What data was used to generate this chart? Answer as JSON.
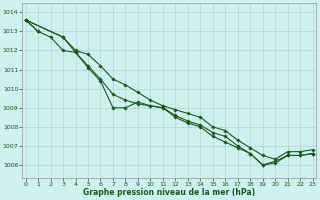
{
  "title": "Graphe pression niveau de la mer (hPa)",
  "background_color": "#cff0f0",
  "grid_color": "#b0d4d4",
  "line_color": "#1a5c1a",
  "marker": "D",
  "marker_size": 1.8,
  "linewidth": 0.8,
  "xlim": [
    -0.3,
    23.3
  ],
  "ylim": [
    1005.3,
    1014.5
  ],
  "yticks": [
    1006,
    1007,
    1008,
    1009,
    1010,
    1011,
    1012,
    1013,
    1014
  ],
  "xticks": [
    0,
    1,
    2,
    3,
    4,
    5,
    6,
    7,
    8,
    9,
    10,
    11,
    12,
    13,
    14,
    15,
    16,
    17,
    18,
    19,
    20,
    21,
    22,
    23
  ],
  "series": [
    [
      1013.6,
      1013.0,
      null,
      null,
      null,
      null,
      null,
      null,
      null,
      null,
      null,
      null,
      null,
      null,
      null,
      null,
      null,
      null,
      null,
      null,
      null,
      null,
      null,
      null
    ],
    [
      1013.6,
      1013.0,
      1012.7,
      1012.0,
      1011.9,
      1011.2,
      1010.5,
      1009.7,
      1009.4,
      1009.2,
      1009.1,
      1009.0,
      1008.5,
      1008.2,
      1008.0,
      1007.5,
      1007.2,
      1006.9,
      1006.6,
      1006.0,
      1006.1,
      1006.5,
      1006.5,
      1006.6
    ],
    [
      1013.6,
      null,
      null,
      1012.7,
      1011.9,
      1011.1,
      1010.4,
      1009.0,
      1009.0,
      1009.3,
      1009.1,
      1009.0,
      1008.6,
      1008.3,
      1008.1,
      1007.7,
      1007.5,
      1007.0,
      1006.6,
      1006.0,
      1006.2,
      1006.5,
      1006.5,
      1006.6
    ],
    [
      1013.6,
      null,
      null,
      1012.7,
      1012.0,
      1011.8,
      1011.2,
      1010.5,
      1010.2,
      1009.8,
      1009.4,
      1009.1,
      1008.9,
      1008.7,
      1008.5,
      1008.0,
      1007.8,
      1007.3,
      1006.9,
      1006.5,
      1006.3,
      1006.7,
      1006.7,
      1006.8
    ]
  ]
}
